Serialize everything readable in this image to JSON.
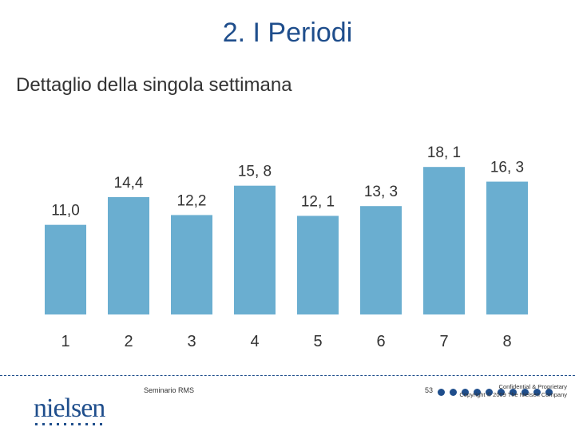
{
  "slide": {
    "title": "2. I Periodi",
    "subtitle": "Dettaglio della singola settimana"
  },
  "footer": {
    "brand": "nielsen",
    "presentation": "Seminario RMS",
    "page_number": "53",
    "confidential_line1": "Confidential & Proprietary",
    "confidential_line2": "Copyright © 2009 The Nielsen Company"
  },
  "colors": {
    "bar": "#6aaed0",
    "brand_blue": "#1f4e8c"
  },
  "chart_data": {
    "type": "bar",
    "categories": [
      "1",
      "2",
      "3",
      "4",
      "5",
      "6",
      "7",
      "8"
    ],
    "values": [
      11.0,
      14.4,
      12.2,
      15.8,
      12.1,
      13.3,
      18.1,
      16.3
    ],
    "data_labels": [
      "11,0",
      "14,4",
      "12,2",
      "15, 8",
      "12, 1",
      "13, 3",
      "18, 1",
      "16, 3"
    ],
    "title": "",
    "xlabel": "",
    "ylabel": "",
    "ylim": [
      0,
      19
    ],
    "grid": false,
    "legend": "none"
  }
}
